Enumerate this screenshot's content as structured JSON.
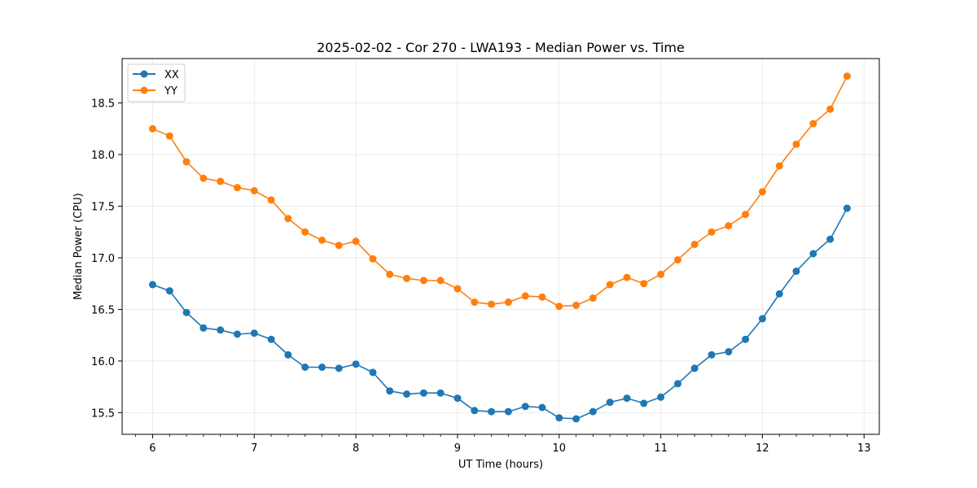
{
  "chart_data": {
    "type": "line",
    "title": "2025-02-02 - Cor 270 - LWA193 - Median Power vs. Time",
    "xlabel": "UT Time (hours)",
    "ylabel": "Median Power (CPU)",
    "xlim": [
      5.7,
      13.15
    ],
    "ylim": [
      15.29,
      18.93
    ],
    "xticks": [
      6,
      7,
      8,
      9,
      10,
      11,
      12,
      13
    ],
    "xtick_labels": [
      "6",
      "7",
      "8",
      "9",
      "10",
      "11",
      "12",
      "13"
    ],
    "yticks": [
      15.5,
      16.0,
      16.5,
      17.0,
      17.5,
      18.0,
      18.5
    ],
    "ytick_labels": [
      "15.5",
      "16.0",
      "16.5",
      "17.0",
      "17.5",
      "18.0",
      "18.5"
    ],
    "grid": true,
    "legend_position": "top-left",
    "x": [
      6.0,
      6.167,
      6.333,
      6.5,
      6.667,
      6.833,
      7.0,
      7.167,
      7.333,
      7.5,
      7.667,
      7.833,
      8.0,
      8.167,
      8.333,
      8.5,
      8.667,
      8.833,
      9.0,
      9.167,
      9.333,
      9.5,
      9.667,
      9.833,
      10.0,
      10.167,
      10.333,
      10.5,
      10.667,
      10.833,
      11.0,
      11.167,
      11.333,
      11.5,
      11.667,
      11.833,
      12.0,
      12.167,
      12.333,
      12.5,
      12.667,
      12.833
    ],
    "series": [
      {
        "name": "XX",
        "color": "#1f77b4",
        "values": [
          16.74,
          16.68,
          16.47,
          16.32,
          16.3,
          16.26,
          16.27,
          16.21,
          16.06,
          15.94,
          15.94,
          15.93,
          15.97,
          15.89,
          15.71,
          15.68,
          15.69,
          15.69,
          15.64,
          15.52,
          15.51,
          15.51,
          15.56,
          15.55,
          15.45,
          15.44,
          15.51,
          15.6,
          15.64,
          15.59,
          15.65,
          15.78,
          15.93,
          16.06,
          16.09,
          16.21,
          16.41,
          16.65,
          16.87,
          17.04,
          17.18,
          17.48
        ]
      },
      {
        "name": "YY",
        "color": "#ff7f0e",
        "values": [
          18.25,
          18.18,
          17.93,
          17.77,
          17.74,
          17.68,
          17.65,
          17.56,
          17.38,
          17.25,
          17.17,
          17.12,
          17.16,
          16.99,
          16.84,
          16.8,
          16.78,
          16.78,
          16.7,
          16.57,
          16.55,
          16.57,
          16.63,
          16.62,
          16.53,
          16.54,
          16.61,
          16.74,
          16.81,
          16.75,
          16.84,
          16.98,
          17.13,
          17.25,
          17.31,
          17.42,
          17.64,
          17.89,
          18.1,
          18.3,
          18.44,
          18.76
        ]
      }
    ]
  }
}
